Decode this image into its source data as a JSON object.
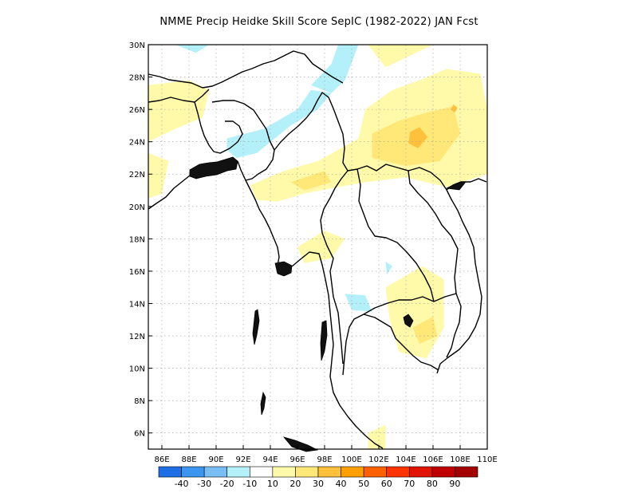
{
  "title": "NMME Precip Heidke Skill Score SepIC (1982-2022) JAN Fcst",
  "map": {
    "lon_range": [
      85,
      110
    ],
    "lat_range": [
      5,
      30
    ],
    "lon_ticks": [
      "86E",
      "88E",
      "90E",
      "92E",
      "94E",
      "96E",
      "98E",
      "100E",
      "102E",
      "104E",
      "106E",
      "108E",
      "110E"
    ],
    "lon_values": [
      86,
      88,
      90,
      92,
      94,
      96,
      98,
      100,
      102,
      104,
      106,
      108,
      110
    ],
    "lat_ticks": [
      "6N",
      "8N",
      "10N",
      "12N",
      "14N",
      "16N",
      "18N",
      "20N",
      "22N",
      "24N",
      "26N",
      "28N",
      "30N"
    ],
    "lat_values": [
      6,
      8,
      10,
      12,
      14,
      16,
      18,
      20,
      22,
      24,
      26,
      28,
      30
    ],
    "grid": true
  },
  "colorbar": {
    "colors": [
      "#1e6ee6",
      "#3c96f0",
      "#78bef5",
      "#b4f0fa",
      "#ffffff",
      "#fffaaa",
      "#ffe878",
      "#ffc03c",
      "#ffa000",
      "#ff6000",
      "#ff3200",
      "#e11400",
      "#c00000",
      "#a50000"
    ],
    "labels": [
      "-40",
      "-30",
      "-20",
      "-10",
      "10",
      "20",
      "30",
      "40",
      "50",
      "60",
      "70",
      "80",
      "90"
    ]
  },
  "regions": [
    {
      "level": "10-20",
      "color": "#fffaaa",
      "lonlat": [
        [
          85,
          27.5
        ],
        [
          88,
          27.8
        ],
        [
          89.5,
          27.2
        ],
        [
          89,
          25.5
        ],
        [
          87,
          24.8
        ],
        [
          85,
          24
        ]
      ]
    },
    {
      "level": "10-20",
      "color": "#fffaaa",
      "lonlat": [
        [
          85,
          23.3
        ],
        [
          86.5,
          22.8
        ],
        [
          86,
          20.8
        ],
        [
          85,
          20.5
        ]
      ]
    },
    {
      "level": "10-20",
      "color": "#fffaaa",
      "lonlat": [
        [
          92.5,
          21.3
        ],
        [
          95,
          22.2
        ],
        [
          97.5,
          22.8
        ],
        [
          100.5,
          24.2
        ],
        [
          101,
          26
        ],
        [
          103,
          27.2
        ],
        [
          105,
          27.8
        ],
        [
          107,
          28.5
        ],
        [
          109.5,
          28.2
        ],
        [
          110,
          26
        ],
        [
          110,
          22
        ],
        [
          107,
          21.2
        ],
        [
          104,
          21.8
        ],
        [
          101,
          21.5
        ],
        [
          99,
          21.2
        ],
        [
          96.5,
          20.8
        ],
        [
          94.5,
          20.3
        ],
        [
          93,
          20.4
        ]
      ]
    },
    {
      "level": "10-20",
      "color": "#fffaaa",
      "lonlat": [
        [
          101.2,
          30
        ],
        [
          102.5,
          28.6
        ],
        [
          104,
          29.2
        ],
        [
          106,
          30
        ]
      ]
    },
    {
      "level": "10-20",
      "color": "#fffaaa",
      "lonlat": [
        [
          96,
          17.5
        ],
        [
          98,
          18.5
        ],
        [
          99.5,
          18
        ],
        [
          98.5,
          16.8
        ],
        [
          96.5,
          16.5
        ]
      ]
    },
    {
      "level": "10-20",
      "color": "#fffaaa",
      "lonlat": [
        [
          102.5,
          15
        ],
        [
          105.2,
          16.3
        ],
        [
          106.8,
          15.5
        ],
        [
          106.8,
          12.5
        ],
        [
          105.5,
          10.6
        ],
        [
          103.5,
          11
        ],
        [
          102.8,
          13
        ]
      ]
    },
    {
      "level": "10-20",
      "color": "#fffaaa",
      "lonlat": [
        [
          101.2,
          6
        ],
        [
          102.5,
          6.5
        ],
        [
          102.5,
          5
        ],
        [
          101.2,
          5
        ]
      ]
    },
    {
      "level": "20-30",
      "color": "#ffe878",
      "lonlat": [
        [
          101.5,
          24.5
        ],
        [
          103.5,
          25.3
        ],
        [
          105.5,
          25.8
        ],
        [
          107.5,
          26.2
        ],
        [
          108,
          24.5
        ],
        [
          106.5,
          22.8
        ],
        [
          104,
          22.5
        ],
        [
          101.5,
          23
        ]
      ]
    },
    {
      "level": "20-30",
      "color": "#ffe878",
      "lonlat": [
        [
          95.5,
          21.5
        ],
        [
          98,
          22.2
        ],
        [
          98.5,
          21.5
        ],
        [
          96.5,
          21
        ]
      ]
    },
    {
      "level": "20-30",
      "color": "#ffe878",
      "lonlat": [
        [
          104.5,
          12.5
        ],
        [
          106,
          13.2
        ],
        [
          106.3,
          12
        ],
        [
          105,
          11.5
        ]
      ]
    },
    {
      "level": "30-40",
      "color": "#ffc03c",
      "lonlat": [
        [
          104.3,
          24.6
        ],
        [
          105,
          24.9
        ],
        [
          105.6,
          24.3
        ],
        [
          104.9,
          23.6
        ],
        [
          104.2,
          23.9
        ]
      ]
    },
    {
      "level": "30-40",
      "color": "#ffc03c",
      "lonlat": [
        [
          107.5,
          26.3
        ],
        [
          107.8,
          26.1
        ],
        [
          107.6,
          25.8
        ],
        [
          107.3,
          26
        ]
      ]
    },
    {
      "level": "-10--20",
      "color": "#b4f0fa",
      "lonlat": [
        [
          90.8,
          24.2
        ],
        [
          93.5,
          24.8
        ],
        [
          96,
          26
        ],
        [
          97,
          27.2
        ],
        [
          98.5,
          27
        ],
        [
          97.5,
          26
        ],
        [
          95.5,
          25
        ],
        [
          93,
          23.3
        ],
        [
          91.5,
          23
        ],
        [
          90.8,
          23.5
        ]
      ]
    },
    {
      "level": "-10--20",
      "color": "#b4f0fa",
      "lonlat": [
        [
          97,
          27.5
        ],
        [
          98.5,
          28.8
        ],
        [
          99,
          30
        ],
        [
          100.5,
          30
        ],
        [
          99.5,
          27.8
        ],
        [
          98.5,
          27
        ]
      ]
    },
    {
      "level": "-10--20",
      "color": "#b4f0fa",
      "lonlat": [
        [
          87,
          30
        ],
        [
          88.5,
          29.5
        ],
        [
          89.5,
          30
        ]
      ]
    },
    {
      "level": "-10--20",
      "color": "#b4f0fa",
      "lonlat": [
        [
          99.5,
          14.6
        ],
        [
          101,
          14.5
        ],
        [
          101.5,
          13.5
        ],
        [
          100,
          13.6
        ]
      ]
    },
    {
      "level": "-10--20",
      "color": "#b4f0fa",
      "lonlat": [
        [
          102.5,
          16.6
        ],
        [
          103,
          16.3
        ],
        [
          102.6,
          15.8
        ]
      ]
    }
  ]
}
